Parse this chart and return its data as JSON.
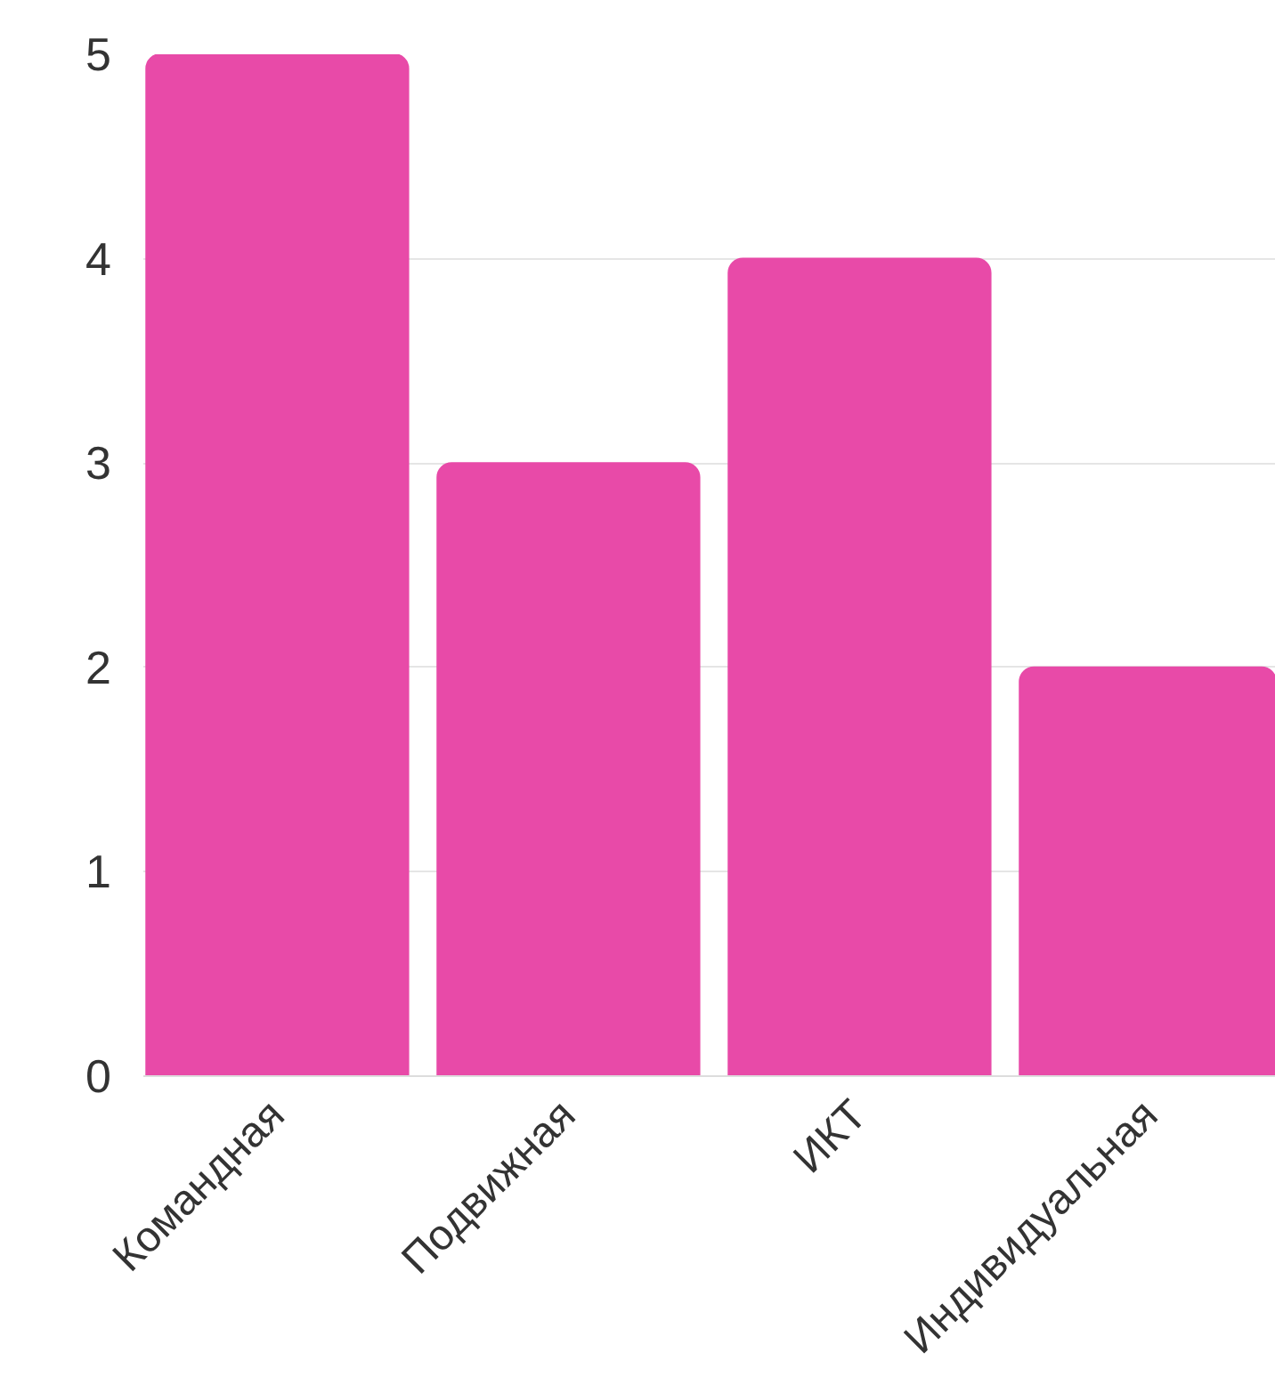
{
  "chart_data": {
    "type": "bar",
    "categories": [
      "Командная",
      "Подвижная",
      "ИКТ",
      "Индивидуальная"
    ],
    "values": [
      5,
      3,
      4,
      2
    ],
    "color": "#e84aa8",
    "ylim": [
      0,
      5
    ],
    "yticks": [
      0,
      1,
      2,
      3,
      4,
      5
    ],
    "grid": "y"
  }
}
